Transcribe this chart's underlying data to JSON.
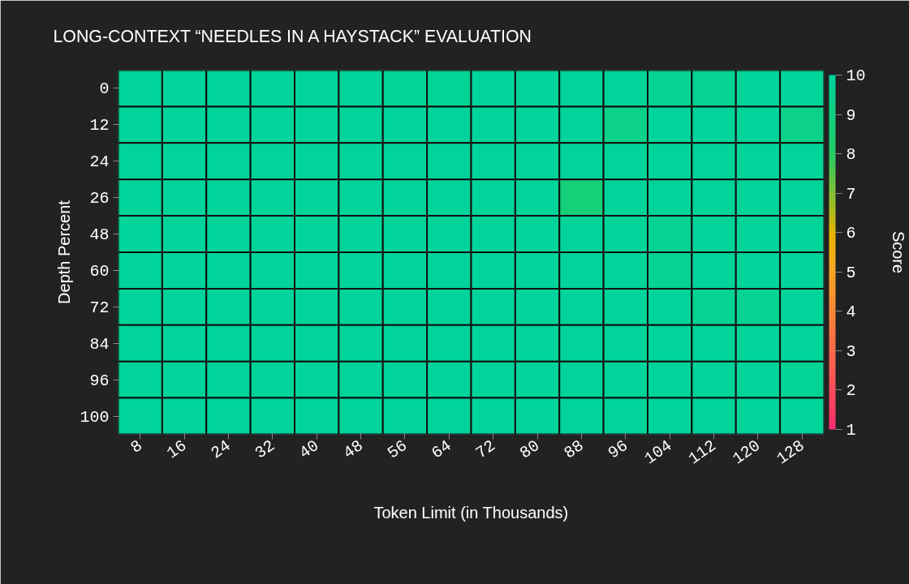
{
  "chart_data": {
    "type": "heatmap",
    "title": "LONG-CONTEXT “NEEDLES IN A HAYSTACK” EVALUATION",
    "xlabel": "Token Limit (in Thousands)",
    "ylabel": "Depth Percent",
    "clabel": "Score",
    "categories": [
      "8",
      "16",
      "24",
      "32",
      "40",
      "48",
      "56",
      "64",
      "72",
      "80",
      "88",
      "96",
      "104",
      "112",
      "120",
      "128"
    ],
    "y_categories": [
      "0",
      "12",
      "24",
      "26",
      "48",
      "60",
      "72",
      "84",
      "96",
      "100"
    ],
    "cells": [
      [
        10,
        10,
        10,
        10,
        10,
        10,
        9.8,
        9.8,
        10,
        10,
        10,
        10,
        9.7,
        9.7,
        10,
        10
      ],
      [
        10,
        10,
        10,
        10,
        10,
        10,
        10,
        10,
        10,
        10,
        10,
        9.3,
        10,
        10,
        10,
        9.3
      ],
      [
        10,
        10,
        10,
        10,
        10,
        10,
        10,
        10,
        10,
        10,
        10,
        10,
        10,
        10,
        10,
        10
      ],
      [
        10,
        10,
        10,
        10,
        10,
        10,
        10,
        10,
        10,
        10,
        8.7,
        10,
        10,
        10,
        10,
        10
      ],
      [
        10,
        10,
        10,
        10,
        10,
        10,
        10,
        10,
        10,
        10,
        10,
        10,
        9.7,
        10,
        10,
        10
      ],
      [
        10,
        10,
        10,
        10,
        10,
        10,
        10,
        10,
        10,
        10,
        10,
        10,
        9.7,
        10,
        10,
        10
      ],
      [
        10,
        10,
        10,
        10,
        10,
        10,
        10,
        10,
        10,
        10,
        10,
        10,
        10,
        9.7,
        9.7,
        10
      ],
      [
        10,
        10,
        10,
        10,
        10,
        10,
        10,
        10,
        10,
        10,
        10,
        10,
        10,
        10,
        10,
        10
      ],
      [
        10,
        10,
        10,
        10,
        10,
        10,
        10,
        10,
        10,
        10,
        10,
        10,
        10,
        10,
        10,
        9.8
      ],
      [
        10,
        10,
        10,
        10,
        10,
        10,
        10,
        10,
        10,
        10,
        10,
        10,
        10,
        10,
        10,
        10
      ]
    ],
    "clim": [
      1,
      10
    ],
    "cticks": [
      1,
      2,
      3,
      4,
      5,
      6,
      7,
      8,
      9,
      10
    ]
  }
}
